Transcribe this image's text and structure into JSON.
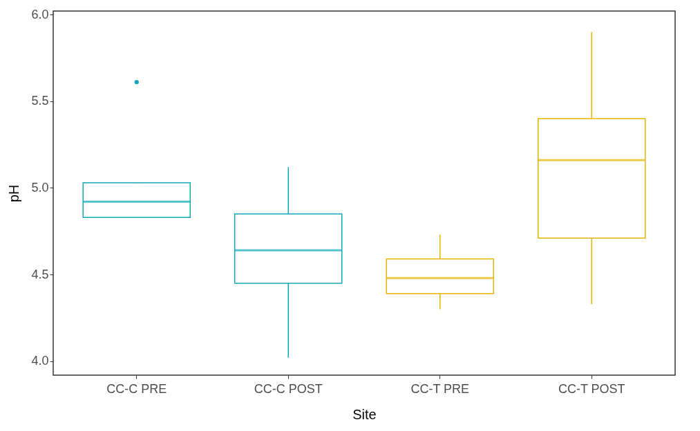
{
  "chart_data": {
    "type": "box",
    "xlabel": "Site",
    "ylabel": "pH",
    "categories": [
      "CC-C PRE",
      "CC-C POST",
      "CC-T PRE",
      "CC-T POST"
    ],
    "colors": [
      "#13a9b8",
      "#13a9b8",
      "#e5b400",
      "#e5b400"
    ],
    "boxes": [
      {
        "low": 4.83,
        "q1": 4.83,
        "median": 4.92,
        "q3": 5.03,
        "high": 5.03,
        "outliers": [
          5.61
        ]
      },
      {
        "low": 4.02,
        "q1": 4.45,
        "median": 4.64,
        "q3": 4.85,
        "high": 5.12
      },
      {
        "low": 4.3,
        "q1": 4.39,
        "median": 4.48,
        "q3": 4.59,
        "high": 4.73
      },
      {
        "low": 4.33,
        "q1": 4.71,
        "median": 5.16,
        "q3": 5.4,
        "high": 5.9
      }
    ],
    "ylim": [
      3.92,
      6.02
    ],
    "yticks": [
      {
        "value": 4,
        "label": "4.0"
      },
      {
        "value": 4.5,
        "label": "4.5"
      },
      {
        "value": 5,
        "label": "5.0"
      },
      {
        "value": 5.5,
        "label": "5.5"
      },
      {
        "value": 6,
        "label": "6.0"
      }
    ],
    "grid": false
  }
}
